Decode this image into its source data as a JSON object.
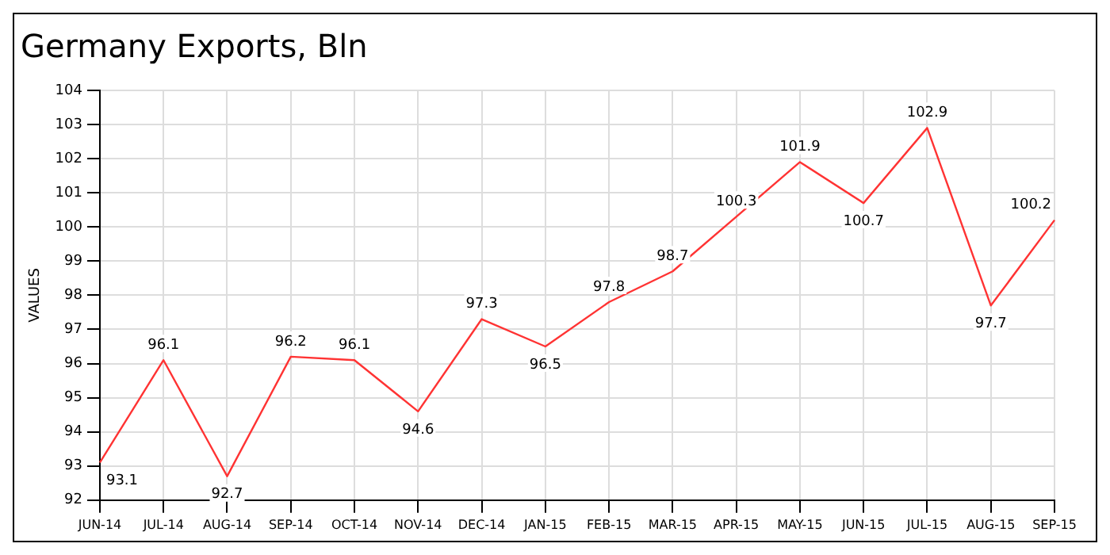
{
  "chart_data": {
    "type": "line",
    "title": "Germany Exports, Bln",
    "ylabel": "VALUES",
    "categories": [
      "JUN-14",
      "JUL-14",
      "AUG-14",
      "SEP-14",
      "OCT-14",
      "NOV-14",
      "DEC-14",
      "JAN-15",
      "FEB-15",
      "MAR-15",
      "APR-15",
      "MAY-15",
      "JUN-15",
      "JUL-15",
      "AUG-15",
      "SEP-15"
    ],
    "series": [
      {
        "color": "#ff3333",
        "values": [
          93.1,
          96.1,
          92.7,
          96.2,
          96.1,
          94.6,
          97.3,
          96.5,
          97.8,
          98.7,
          100.3,
          101.9,
          100.7,
          102.9,
          97.7,
          100.2
        ]
      }
    ],
    "ylim": [
      92,
      104
    ],
    "yticks": [
      92,
      93,
      94,
      95,
      96,
      97,
      98,
      99,
      100,
      101,
      102,
      103,
      104
    ],
    "grid": true,
    "data_labels": true,
    "marker": "none",
    "line_style": "solid"
  }
}
